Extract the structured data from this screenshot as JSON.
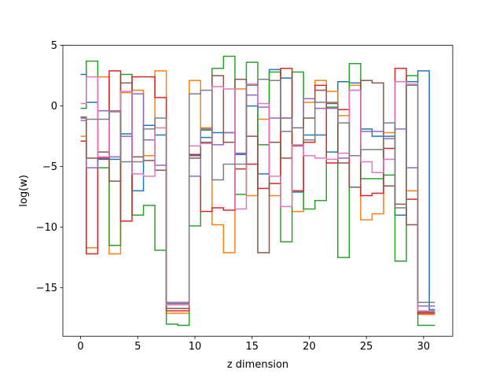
{
  "chart_data": {
    "type": "line",
    "step": "mid",
    "xlabel": "z dimension",
    "ylabel": "log(w)",
    "xlim": [
      -1.55,
      32.55
    ],
    "ylim": [
      -19.0,
      5.0
    ],
    "x_ticks": [
      0,
      5,
      10,
      15,
      20,
      25,
      30
    ],
    "y_ticks": [
      5,
      0,
      -5,
      -10,
      -15
    ],
    "y_tick_labels": [
      "5",
      "0",
      "−5",
      "−10",
      "−15"
    ],
    "series": [
      {
        "color": "#1f77b4",
        "values": [
          2.6,
          0.3,
          -4.4,
          -4.4,
          -2.3,
          -7.0,
          -1.6,
          -2.4,
          -16.7,
          -16.7,
          -4.1,
          -2.6,
          -2.2,
          -2.2,
          -4.0,
          0.0,
          -5.6,
          3.0,
          2.3,
          -7.1,
          -2.4,
          -2.4,
          -3.8,
          2.0,
          1.9,
          -1.9,
          -2.5,
          -2.5,
          -9.0,
          2.0,
          2.9,
          -16.8
        ]
      },
      {
        "color": "#ff7f0e",
        "values": [
          -2.5,
          -11.7,
          2.4,
          -12.2,
          1.1,
          1.3,
          -4.1,
          2.9,
          -17.1,
          -17.1,
          2.1,
          -1.8,
          -9.8,
          -12.1,
          1.4,
          -7.4,
          -1.1,
          -7.4,
          -1.0,
          -8.7,
          0.3,
          2.1,
          1.2,
          -0.8,
          1.7,
          -9.4,
          -8.9,
          -2.2,
          2.0,
          -7.0,
          -17.2,
          -17.2
        ]
      },
      {
        "color": "#2ca02c",
        "values": [
          -0.2,
          3.7,
          -5.1,
          -11.5,
          2.6,
          -9.0,
          -8.2,
          -11.9,
          -18.0,
          -18.1,
          -9.9,
          -2.0,
          3.1,
          4.1,
          -7.3,
          3.6,
          -3.2,
          2.8,
          -11.2,
          2.8,
          -8.5,
          -7.8,
          -0.1,
          -12.5,
          3.5,
          -6.0,
          -6.0,
          -5.7,
          -12.8,
          2.5,
          -18.1,
          -18.1
        ]
      },
      {
        "color": "#d62728",
        "values": [
          -2.9,
          -12.2,
          -4.3,
          2.9,
          -9.5,
          2.4,
          2.4,
          0.7,
          -16.9,
          -16.9,
          -4.0,
          -8.7,
          -8.4,
          -8.6,
          -5.2,
          -4.8,
          -6.8,
          -6.4,
          3.1,
          -7.0,
          -3.0,
          1.7,
          -4.7,
          -0.3,
          -6.7,
          -7.4,
          -7.2,
          -3.5,
          3.1,
          -7.7,
          -17.1,
          -17.1
        ]
      },
      {
        "color": "#9467bd",
        "values": [
          -1.2,
          -5.1,
          -0.4,
          -4.2,
          -2.5,
          1.0,
          -2.8,
          -4.9,
          -16.2,
          -16.2,
          -5.8,
          -1.9,
          -3.2,
          -2.2,
          -3.9,
          0.9,
          -0.1,
          -1.0,
          -1.0,
          -1.8,
          0.6,
          -0.2,
          -0.2,
          -4.3,
          1.3,
          -2.1,
          -2.1,
          -2.7,
          -1.9,
          -5.1,
          -16.5,
          -16.5
        ]
      },
      {
        "color": "#8c564b",
        "values": [
          -1.0,
          -4.3,
          -3.8,
          -6.2,
          1.9,
          -4.2,
          -4.5,
          -5.3,
          -16.7,
          -16.7,
          -4.3,
          -3.0,
          2.5,
          -3.0,
          2.2,
          -2.5,
          -12.1,
          -3.0,
          -4.3,
          -3.3,
          -1.0,
          1.3,
          0.2,
          -4.7,
          -6.7,
          2.1,
          1.9,
          -6.6,
          -8.1,
          -9.8,
          -17.0,
          -17.0
        ]
      },
      {
        "color": "#e377c2",
        "values": [
          0.2,
          2.4,
          -4.2,
          -0.5,
          1.2,
          -5.6,
          -5.8,
          -1.8,
          -16.4,
          -16.4,
          -3.3,
          -3.1,
          1.6,
          1.4,
          -8.5,
          1.8,
          0.2,
          -5.8,
          -8.3,
          -3.2,
          -4.1,
          -4.3,
          -4.4,
          -3.9,
          1.3,
          -4.6,
          -5.5,
          -4.4,
          2.0,
          1.8,
          -16.9,
          -16.9
        ]
      },
      {
        "color": "#7f7f7f",
        "values": [
          -0.9,
          -1.1,
          -1.1,
          -0.4,
          -4.6,
          -4.6,
          -1.9,
          -1.0,
          -16.3,
          -16.3,
          1.0,
          1.3,
          -6.1,
          -4.8,
          -4.8,
          1.7,
          2.2,
          2.1,
          -2.1,
          -1.8,
          -2.8,
          0.3,
          0.3,
          -1.4,
          -4.1,
          -3.6,
          -3.6,
          -1.4,
          -8.4,
          1.7,
          -16.2,
          -16.2
        ]
      }
    ]
  }
}
